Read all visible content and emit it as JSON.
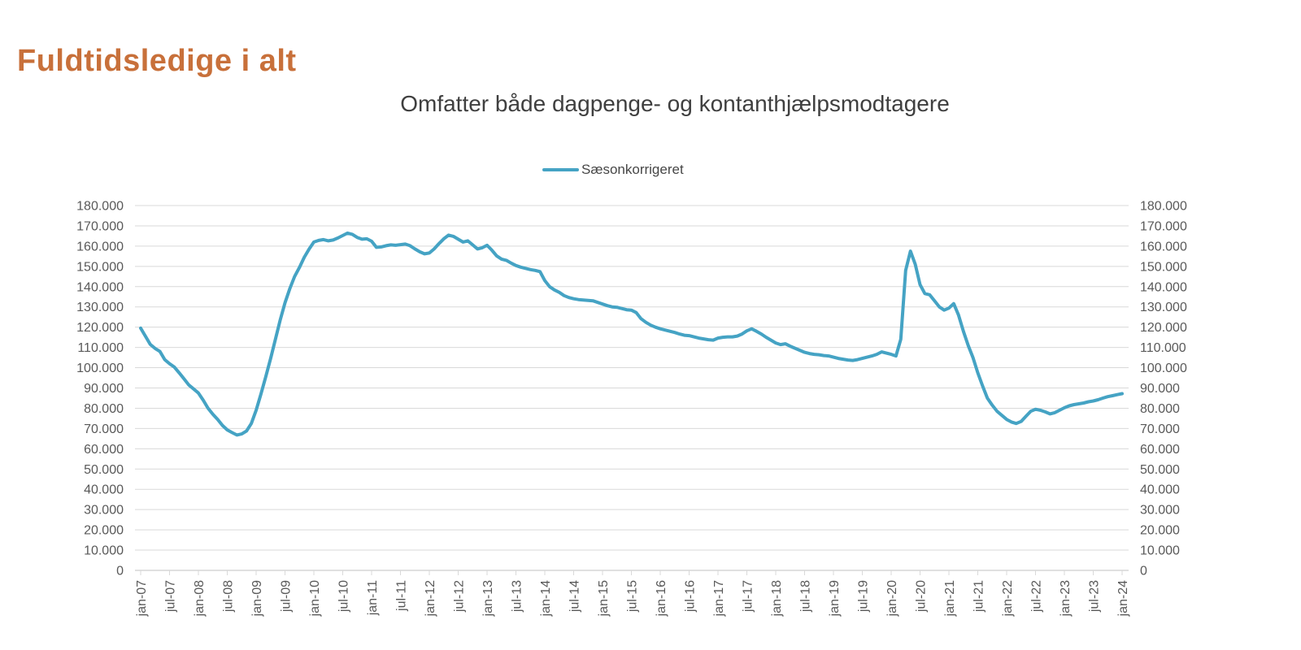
{
  "header": {
    "title": "Fuldtidsledige i alt"
  },
  "colors": {
    "title": "#C8703A",
    "subtitle": "#3F3F3F",
    "legend_text": "#474747",
    "series_line": "#45A3C4",
    "gridline": "#D9D9D9",
    "axis_line": "#C0C0C0",
    "tick_label": "#595959",
    "background": "#FFFFFF"
  },
  "chart_data": {
    "type": "line",
    "title": "Omfatter både dagpenge- og kontanthjælpsmodtagere",
    "legend": [
      "Sæsonkorrigeret"
    ],
    "legend_position": "top-center",
    "grid": true,
    "xlabel": "",
    "ylabel": "",
    "ylim": [
      0,
      180000
    ],
    "y_tick_step": 10000,
    "y_tick_labels": [
      "0",
      "10.000",
      "20.000",
      "30.000",
      "40.000",
      "50.000",
      "60.000",
      "70.000",
      "80.000",
      "90.000",
      "100.000",
      "110.000",
      "120.000",
      "130.000",
      "140.000",
      "150.000",
      "160.000",
      "170.000",
      "180.000"
    ],
    "y_axis_sides": [
      "left",
      "right"
    ],
    "x_start": "jan-07",
    "x_end": "jan-24",
    "x_tick_every_months": 6,
    "x_tick_labels": [
      "jan-07",
      "jul-07",
      "jan-08",
      "jul-08",
      "jan-09",
      "jul-09",
      "jan-10",
      "jul-10",
      "jan-11",
      "jul-11",
      "jan-12",
      "jul-12",
      "jan-13",
      "jul-13",
      "jan-14",
      "jul-14",
      "jan-15",
      "jul-15",
      "jan-16",
      "jul-16",
      "jan-17",
      "jul-17",
      "jan-18",
      "jul-18",
      "jan-19",
      "jul-19",
      "jan-20",
      "jul-20",
      "jan-21",
      "jul-21",
      "jan-22",
      "jul-22",
      "jan-23",
      "jul-23",
      "jan-24"
    ],
    "series": [
      {
        "name": "Sæsonkorrigeret",
        "color": "#45A3C4",
        "x_unit": "month (jan-07 .. jan-24)",
        "values": [
          119500,
          115500,
          111500,
          109500,
          108000,
          104000,
          102000,
          100300,
          97500,
          94500,
          91500,
          89500,
          87500,
          84000,
          80000,
          77000,
          74500,
          71500,
          69300,
          68000,
          66800,
          67300,
          68800,
          72500,
          79000,
          87000,
          95500,
          104500,
          114000,
          123500,
          132000,
          139000,
          145000,
          149500,
          154500,
          158500,
          162000,
          162800,
          163200,
          162600,
          163000,
          164000,
          165200,
          166400,
          165800,
          164300,
          163400,
          163600,
          162400,
          159400,
          159600,
          160200,
          160600,
          160400,
          160700,
          161000,
          160200,
          158600,
          157200,
          156200,
          156600,
          158600,
          161200,
          163600,
          165400,
          164800,
          163400,
          162000,
          162600,
          160600,
          158600,
          159200,
          160400,
          158000,
          155200,
          153600,
          153000,
          151600,
          150400,
          149600,
          149000,
          148400,
          148000,
          147400,
          143000,
          140000,
          138400,
          137200,
          135600,
          134600,
          134000,
          133600,
          133400,
          133200,
          133000,
          132200,
          131400,
          130600,
          130000,
          129800,
          129200,
          128600,
          128400,
          127200,
          124200,
          122400,
          121000,
          120000,
          119200,
          118600,
          118000,
          117400,
          116600,
          116000,
          115800,
          115200,
          114600,
          114200,
          113800,
          113600,
          114600,
          115000,
          115200,
          115200,
          115600,
          116600,
          118200,
          119200,
          118000,
          116600,
          115000,
          113600,
          112200,
          111400,
          111800,
          110600,
          109600,
          108600,
          107600,
          107000,
          106600,
          106400,
          106000,
          105800,
          105200,
          104600,
          104200,
          103800,
          103600,
          104000,
          104600,
          105200,
          105800,
          106600,
          107800,
          107200,
          106600,
          105800,
          114000,
          148000,
          157500,
          151000,
          141000,
          136600,
          136000,
          133000,
          130000,
          128400,
          129400,
          131600,
          126000,
          118000,
          111000,
          105000,
          97500,
          91000,
          85000,
          81500,
          78500,
          76500,
          74500,
          73200,
          72500,
          73500,
          76000,
          78500,
          79500,
          79000,
          78200,
          77200,
          77800,
          79000,
          80200,
          81200,
          81800,
          82200,
          82600,
          83200,
          83600,
          84200,
          85000,
          85700,
          86200,
          86700,
          87200
        ]
      }
    ]
  }
}
